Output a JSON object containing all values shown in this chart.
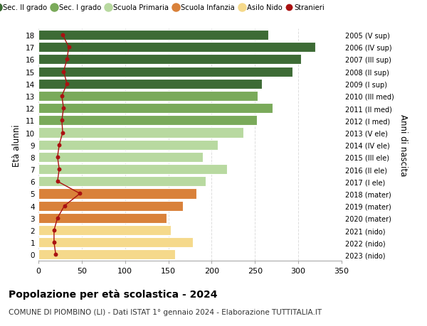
{
  "ages": [
    18,
    17,
    16,
    15,
    14,
    13,
    12,
    11,
    10,
    9,
    8,
    7,
    6,
    5,
    4,
    3,
    2,
    1,
    0
  ],
  "bar_values": [
    265,
    320,
    303,
    293,
    258,
    253,
    270,
    252,
    237,
    207,
    190,
    218,
    193,
    182,
    167,
    148,
    153,
    178,
    158
  ],
  "stranieri": [
    28,
    35,
    33,
    29,
    33,
    27,
    29,
    27,
    28,
    24,
    22,
    24,
    22,
    48,
    30,
    22,
    18,
    18,
    20
  ],
  "right_labels": [
    "2005 (V sup)",
    "2006 (IV sup)",
    "2007 (III sup)",
    "2008 (II sup)",
    "2009 (I sup)",
    "2010 (III med)",
    "2011 (II med)",
    "2012 (I med)",
    "2013 (V ele)",
    "2014 (IV ele)",
    "2015 (III ele)",
    "2016 (II ele)",
    "2017 (I ele)",
    "2018 (mater)",
    "2019 (mater)",
    "2020 (mater)",
    "2021 (nido)",
    "2022 (nido)",
    "2023 (nido)"
  ],
  "bar_colors": [
    "#3d6b35",
    "#3d6b35",
    "#3d6b35",
    "#3d6b35",
    "#3d6b35",
    "#7aaa5a",
    "#7aaa5a",
    "#7aaa5a",
    "#b8d9a0",
    "#b8d9a0",
    "#b8d9a0",
    "#b8d9a0",
    "#b8d9a0",
    "#d9813a",
    "#d9813a",
    "#d9813a",
    "#f5d98b",
    "#f5d98b",
    "#f5d98b"
  ],
  "legend_labels": [
    "Sec. II grado",
    "Sec. I grado",
    "Scuola Primaria",
    "Scuola Infanzia",
    "Asilo Nido",
    "Stranieri"
  ],
  "legend_colors": [
    "#3d6b35",
    "#7aaa5a",
    "#b8d9a0",
    "#d9813a",
    "#f5d98b",
    "#aa1111"
  ],
  "ylabel": "Età alunni",
  "ylabel_right": "Anni di nascita",
  "title": "Popolazione per età scolastica - 2024",
  "subtitle": "COMUNE DI PIOMBINO (LI) - Dati ISTAT 1° gennaio 2024 - Elaborazione TUTTITALIA.IT",
  "xlim": [
    0,
    350
  ],
  "bg_color": "#ffffff",
  "grid_color": "#dddddd"
}
